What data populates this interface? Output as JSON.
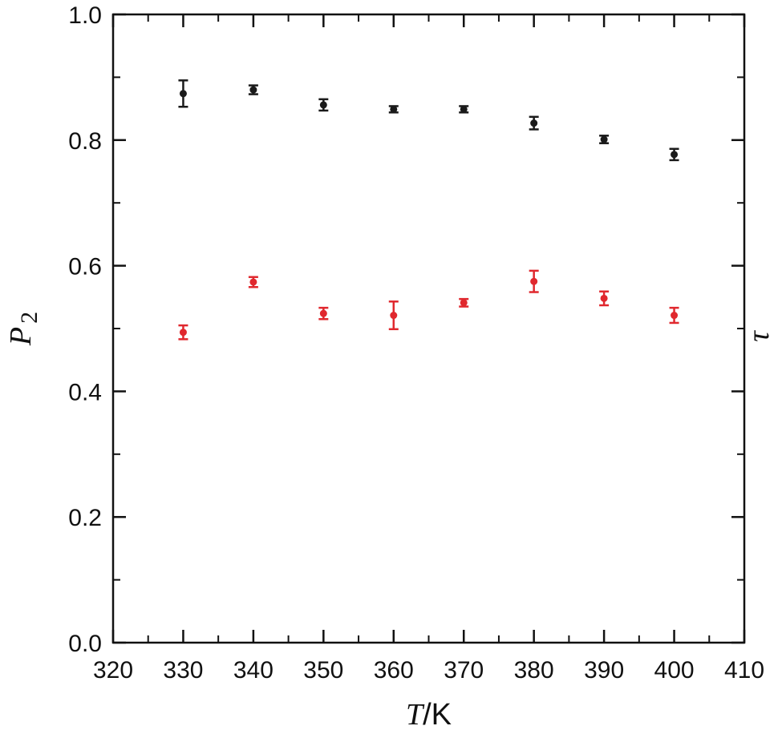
{
  "chart_data": {
    "type": "scatter",
    "title": "",
    "xlabel": "T/K",
    "ylabel": "P2",
    "ylabel_right": "τ",
    "xlim": [
      320,
      410
    ],
    "ylim": [
      0.0,
      1.0
    ],
    "xticks": [
      320,
      330,
      340,
      350,
      360,
      370,
      380,
      390,
      400,
      410
    ],
    "yticks": [
      "0.0",
      "0.2",
      "0.4",
      "0.6",
      "0.8",
      "1.0"
    ],
    "yticks_values": [
      0.0,
      0.2,
      0.4,
      0.6,
      0.8,
      1.0
    ],
    "grid": false,
    "legend": "none",
    "series": [
      {
        "color": "#1a1a1a",
        "axis": "left",
        "points": [
          {
            "x": 330,
            "y": 0.874,
            "err": 0.021
          },
          {
            "x": 340,
            "y": 0.88,
            "err": 0.007
          },
          {
            "x": 350,
            "y": 0.856,
            "err": 0.009
          },
          {
            "x": 360,
            "y": 0.849,
            "err": 0.005
          },
          {
            "x": 370,
            "y": 0.849,
            "err": 0.005
          },
          {
            "x": 380,
            "y": 0.827,
            "err": 0.01
          },
          {
            "x": 390,
            "y": 0.801,
            "err": 0.006
          },
          {
            "x": 400,
            "y": 0.777,
            "err": 0.009
          }
        ]
      },
      {
        "color": "#e0282e",
        "axis": "right",
        "points": [
          {
            "x": 330,
            "y": 0.494,
            "err": 0.011
          },
          {
            "x": 340,
            "y": 0.574,
            "err": 0.008
          },
          {
            "x": 350,
            "y": 0.524,
            "err": 0.009
          },
          {
            "x": 360,
            "y": 0.521,
            "err": 0.022
          },
          {
            "x": 370,
            "y": 0.541,
            "err": 0.006
          },
          {
            "x": 380,
            "y": 0.575,
            "err": 0.017
          },
          {
            "x": 390,
            "y": 0.548,
            "err": 0.011
          },
          {
            "x": 400,
            "y": 0.521,
            "err": 0.012
          }
        ]
      }
    ]
  }
}
